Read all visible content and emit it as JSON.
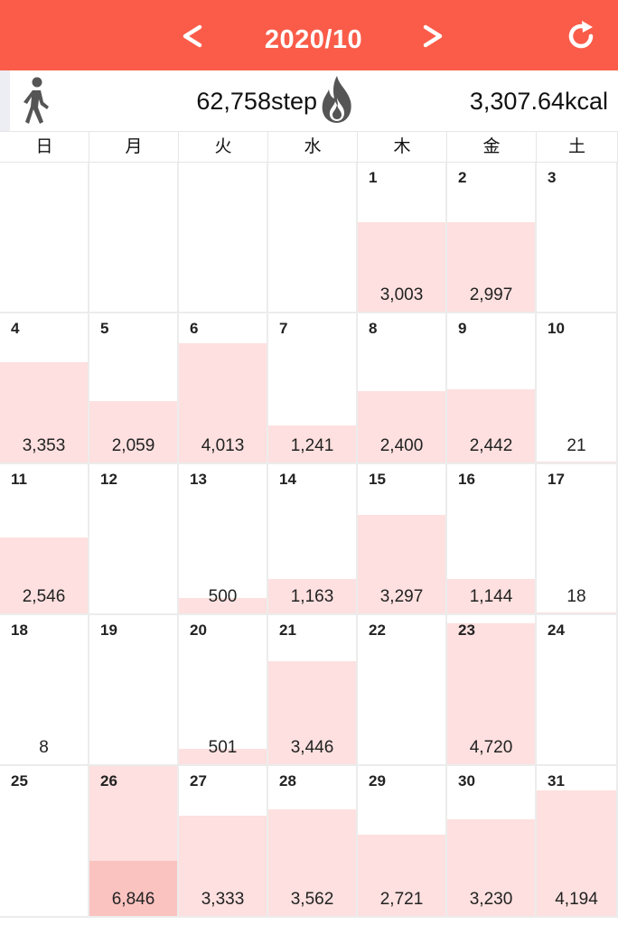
{
  "header": {
    "prev_label": "<",
    "title": "2020/10",
    "next_label": ">",
    "refresh_icon": "refresh-icon",
    "background": "#fa5c49"
  },
  "summary": {
    "walk_icon": "walking-person-icon",
    "steps": "62,758step",
    "fire_icon": "flame-icon",
    "kcal": "3,307.64kcal"
  },
  "weekdays": [
    "日",
    "月",
    "火",
    "水",
    "木",
    "金",
    "土"
  ],
  "colors": {
    "bar": "#fde0df",
    "bar_highlight": "#fbc3c0",
    "accent": "#fa5c49"
  },
  "bar_scale_max_steps": 5000,
  "weeks": [
    [
      {
        "day": "",
        "value": ""
      },
      {
        "day": "",
        "value": ""
      },
      {
        "day": "",
        "value": ""
      },
      {
        "day": "",
        "value": ""
      },
      {
        "day": "1",
        "value": "3,003"
      },
      {
        "day": "2",
        "value": "2,997"
      },
      {
        "day": "3",
        "value": ""
      }
    ],
    [
      {
        "day": "4",
        "value": "3,353"
      },
      {
        "day": "5",
        "value": "2,059"
      },
      {
        "day": "6",
        "value": "4,013"
      },
      {
        "day": "7",
        "value": "1,241"
      },
      {
        "day": "8",
        "value": "2,400"
      },
      {
        "day": "9",
        "value": "2,442"
      },
      {
        "day": "10",
        "value": "21"
      }
    ],
    [
      {
        "day": "11",
        "value": "2,546"
      },
      {
        "day": "12",
        "value": ""
      },
      {
        "day": "13",
        "value": "500"
      },
      {
        "day": "14",
        "value": "1,163"
      },
      {
        "day": "15",
        "value": "3,297"
      },
      {
        "day": "16",
        "value": "1,144"
      },
      {
        "day": "17",
        "value": "18"
      }
    ],
    [
      {
        "day": "18",
        "value": "8"
      },
      {
        "day": "19",
        "value": ""
      },
      {
        "day": "20",
        "value": "501"
      },
      {
        "day": "21",
        "value": "3,446"
      },
      {
        "day": "22",
        "value": ""
      },
      {
        "day": "23",
        "value": "4,720"
      },
      {
        "day": "24",
        "value": ""
      }
    ],
    [
      {
        "day": "25",
        "value": ""
      },
      {
        "day": "26",
        "value": "6,846",
        "highlight": true
      },
      {
        "day": "27",
        "value": "3,333"
      },
      {
        "day": "28",
        "value": "3,562"
      },
      {
        "day": "29",
        "value": "2,721"
      },
      {
        "day": "30",
        "value": "3,230"
      },
      {
        "day": "31",
        "value": "4,194"
      }
    ]
  ]
}
